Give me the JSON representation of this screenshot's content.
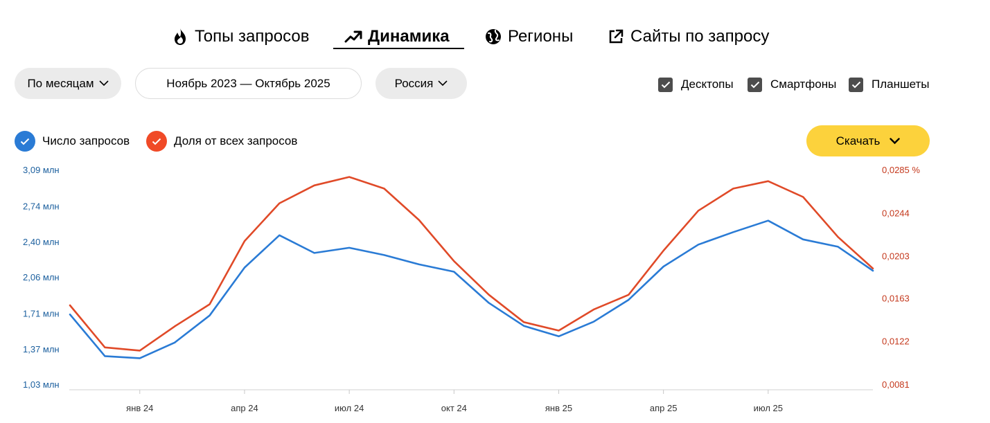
{
  "tabs": [
    {
      "label": "Топы запросов",
      "icon": "fire-icon"
    },
    {
      "label": "Динамика",
      "icon": "trend-icon",
      "active": true
    },
    {
      "label": "Регионы",
      "icon": "globe-icon"
    },
    {
      "label": "Сайты по запросу",
      "icon": "external-link-icon"
    }
  ],
  "filters": {
    "period": "По месяцам",
    "date_range": "Ноябрь 2023 — Октябрь 2025",
    "region": "Россия"
  },
  "devices": [
    {
      "label": "Десктопы",
      "checked": true
    },
    {
      "label": "Смартфоны",
      "checked": true
    },
    {
      "label": "Планшеты",
      "checked": true
    }
  ],
  "metrics": [
    {
      "label": "Число запросов",
      "checked": true,
      "color": "#2a7bd5"
    },
    {
      "label": "Доля от всех запросов",
      "checked": true,
      "color": "#f04a27"
    }
  ],
  "download_label": "Скачать",
  "colors": {
    "accent_yellow": "#fcd23c",
    "series_blue": "#2a7bd5",
    "series_red": "#e04a28",
    "left_axis": "#1b5f9e",
    "right_axis": "#c4381c"
  },
  "chart_data": {
    "type": "line",
    "x": [
      "Ноя 2023",
      "Дек 2023",
      "Янв 2024",
      "Фев 2024",
      "Мар 2024",
      "Апр 2024",
      "Май 2024",
      "Июн 2024",
      "Июл 2024",
      "Авг 2024",
      "Сен 2024",
      "Окт 2024",
      "Ноя 2024",
      "Дек 2024",
      "Янв 2025",
      "Фев 2025",
      "Мар 2025",
      "Апр 2025",
      "Май 2025",
      "Июн 2025",
      "Июл 2025",
      "Авг 2025",
      "Сен 2025",
      "Окт 2025"
    ],
    "x_tick_labels": [
      {
        "index": 2,
        "label": "янв 24"
      },
      {
        "index": 5,
        "label": "апр 24"
      },
      {
        "index": 8,
        "label": "июл 24"
      },
      {
        "index": 11,
        "label": "окт 24"
      },
      {
        "index": 14,
        "label": "янв 25"
      },
      {
        "index": 17,
        "label": "апр 25"
      },
      {
        "index": 20,
        "label": "июл 25"
      }
    ],
    "left_axis": {
      "ylim": [
        1.03,
        3.09
      ],
      "unit": "млн",
      "ticks": [
        {
          "value": 3.09,
          "label": "3,09 млн"
        },
        {
          "value": 2.74,
          "label": "2,74 млн"
        },
        {
          "value": 2.4,
          "label": "2,40 млн"
        },
        {
          "value": 2.06,
          "label": "2,06 млн"
        },
        {
          "value": 1.71,
          "label": "1,71 млн"
        },
        {
          "value": 1.37,
          "label": "1,37 млн"
        },
        {
          "value": 1.03,
          "label": "1,03 млн"
        }
      ]
    },
    "right_axis": {
      "ylim": [
        0.0081,
        0.0285
      ],
      "unit": "%",
      "ticks": [
        {
          "value": 0.0285,
          "label": "0,0285 %"
        },
        {
          "value": 0.0244,
          "label": "0,0244"
        },
        {
          "value": 0.0203,
          "label": "0,0203"
        },
        {
          "value": 0.0163,
          "label": "0,0163"
        },
        {
          "value": 0.0122,
          "label": "0,0122"
        },
        {
          "value": 0.0081,
          "label": "0,0081"
        }
      ]
    },
    "series": [
      {
        "name": "Число запросов",
        "axis": "left",
        "values": [
          1.7,
          1.3,
          1.28,
          1.43,
          1.69,
          2.15,
          2.46,
          2.29,
          2.34,
          2.27,
          2.18,
          2.11,
          1.81,
          1.59,
          1.49,
          1.63,
          1.84,
          2.16,
          2.37,
          2.49,
          2.6,
          2.42,
          2.35,
          2.12
        ]
      },
      {
        "name": "Доля от всех запросов",
        "axis": "right",
        "values": [
          0.0156,
          0.0116,
          0.0113,
          0.0136,
          0.0157,
          0.0217,
          0.0253,
          0.027,
          0.0278,
          0.0267,
          0.0237,
          0.0198,
          0.0166,
          0.014,
          0.0132,
          0.0152,
          0.0166,
          0.0208,
          0.0246,
          0.0267,
          0.0274,
          0.0259,
          0.0221,
          0.0191
        ]
      }
    ],
    "grid": false,
    "legend_position": "top-left"
  }
}
